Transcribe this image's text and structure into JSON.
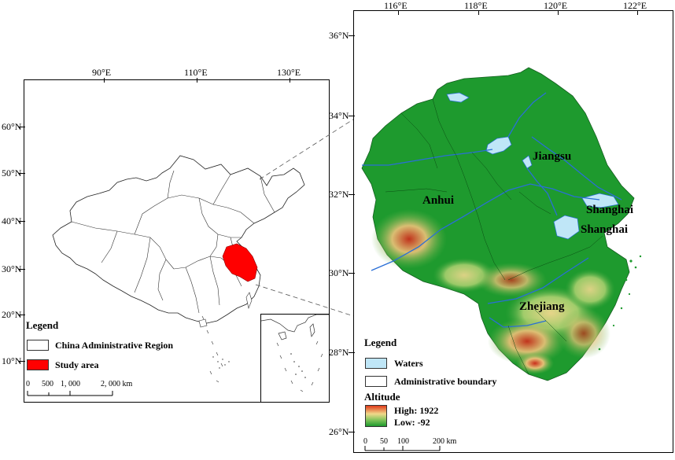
{
  "left_map": {
    "lon_labels": [
      {
        "text": "90°E",
        "lon": 90
      },
      {
        "text": "110°E",
        "lon": 110
      },
      {
        "text": "130°E",
        "lon": 130
      }
    ],
    "lat_labels": [
      {
        "text": "60°N",
        "lat": 60
      },
      {
        "text": "50°N",
        "lat": 50
      },
      {
        "text": "40°N",
        "lat": 40
      },
      {
        "text": "30°N",
        "lat": 30
      },
      {
        "text": "20°N",
        "lat": 20
      },
      {
        "text": "10°N",
        "lat": 10
      }
    ],
    "legend": {
      "title": "Legend",
      "items": [
        {
          "label": "China Administrative Region",
          "color": "#ffffff"
        },
        {
          "label": "Study area",
          "color": "#ff0000"
        }
      ]
    },
    "scale_bar": {
      "labels": [
        "0",
        "500",
        "1, 000",
        "2, 000 km"
      ]
    },
    "study_area_color": "#ff0000"
  },
  "right_map": {
    "lon_labels": [
      {
        "text": "116°E",
        "lon": 116
      },
      {
        "text": "118°E",
        "lon": 118
      },
      {
        "text": "120°E",
        "lon": 120
      },
      {
        "text": "122°E",
        "lon": 122
      }
    ],
    "lat_labels": [
      {
        "text": "36°N",
        "lat": 36
      },
      {
        "text": "34°N",
        "lat": 34
      },
      {
        "text": "32°N",
        "lat": 32
      },
      {
        "text": "30°N",
        "lat": 30
      },
      {
        "text": "28°N",
        "lat": 28
      },
      {
        "text": "26°N",
        "lat": 26
      }
    ],
    "regions": {
      "jiangsu": "Jiangsu",
      "anhui": "Anhui",
      "shanghai1": "Shanghai",
      "shanghai2": "Shanghai",
      "zhejiang": "Zhejiang"
    },
    "legend": {
      "title": "Legend",
      "waters": "Waters",
      "admin_boundary": "Administrative boundary",
      "altitude_title": "Altitude",
      "high": "High: 1922",
      "low": "Low: -92"
    },
    "scale_bar": {
      "labels": [
        "0",
        "50",
        "100",
        "200 km"
      ]
    },
    "colors": {
      "green": "#1e9a2e",
      "water": "#bfe6f7",
      "river": "#2a6fd6",
      "high": "#e03a1a",
      "mid": "#f0d98a"
    }
  }
}
